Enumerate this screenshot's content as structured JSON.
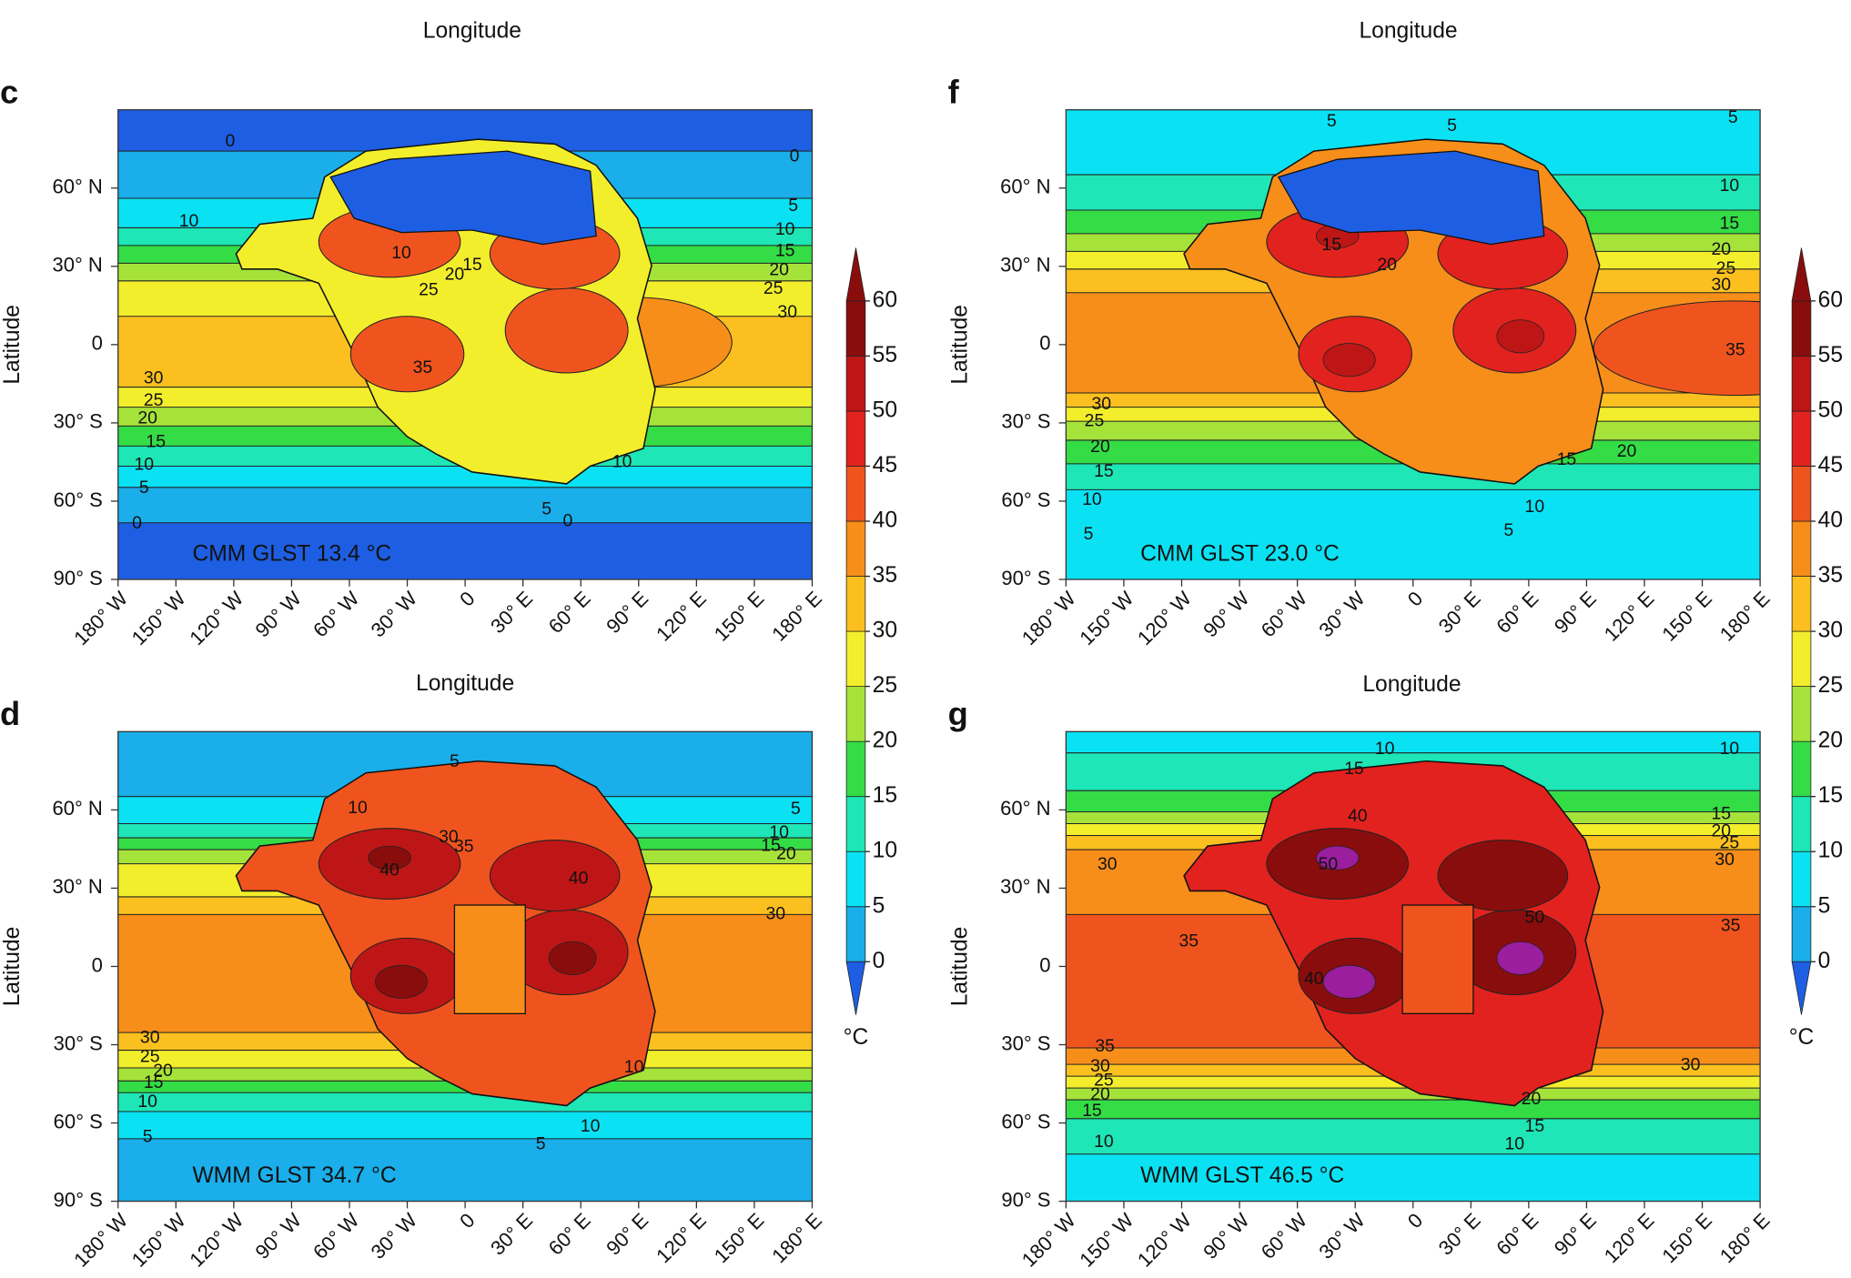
{
  "cut_labels": [
    "Longitude",
    "Longitude"
  ],
  "colorbar": {
    "ticks": [
      0,
      5,
      10,
      15,
      20,
      25,
      30,
      35,
      40,
      45,
      50,
      55,
      60
    ],
    "unit": "°C",
    "colors": [
      "#1aaeea",
      "#0ae2f4",
      "#1ee6b6",
      "#34dc46",
      "#a6e33a",
      "#f3ee2c",
      "#fbc01f",
      "#f78e1a",
      "#f0541e",
      "#e2221e",
      "#be1616",
      "#8a0d0d"
    ],
    "under_color": "#1e5ee2",
    "over_color": "#9a1e9e"
  },
  "chart_data": [
    {
      "type": "map",
      "panel": "c",
      "annotation": "CMM GLST 13.4 °C",
      "xlabel": "Longitude",
      "ylabel": "Latitude",
      "xlim": [
        -180,
        180
      ],
      "ylim": [
        -90,
        90
      ],
      "xticks": [
        {
          "value": -180,
          "label": "180° W"
        },
        {
          "value": -150,
          "label": "150° W"
        },
        {
          "value": -120,
          "label": "120° W"
        },
        {
          "value": -90,
          "label": "90° W"
        },
        {
          "value": -60,
          "label": "60° W"
        },
        {
          "value": -30,
          "label": "30° W"
        },
        0,
        {
          "value": 30,
          "label": "30° E"
        },
        {
          "value": 60,
          "label": "60° E"
        },
        {
          "value": 90,
          "label": "90° E"
        },
        {
          "value": 120,
          "label": "120° E"
        },
        {
          "value": 150,
          "label": "150° E"
        },
        {
          "value": 180,
          "label": "180° E"
        }
      ],
      "yticks": [
        {
          "value": 60,
          "label": "60° N"
        },
        {
          "value": 30,
          "label": "30° N"
        },
        0,
        {
          "value": -30,
          "label": "30° S"
        },
        {
          "value": -60,
          "label": "60° S"
        },
        {
          "value": -90,
          "label": "90° S"
        }
      ],
      "contour_labels": [
        0,
        0,
        10,
        5,
        10,
        15,
        20,
        25,
        30,
        10,
        15,
        20,
        25,
        35,
        30,
        25,
        20,
        15,
        10,
        5,
        0,
        5,
        0,
        10
      ]
    },
    {
      "type": "map",
      "panel": "f",
      "annotation": "CMM GLST 23.0 °C",
      "xlabel": "Longitude",
      "ylabel": "Latitude",
      "xlim": [
        -180,
        180
      ],
      "ylim": [
        -90,
        90
      ],
      "xticks": [
        {
          "value": -180,
          "label": "180° W"
        },
        {
          "value": -150,
          "label": "150° W"
        },
        {
          "value": -120,
          "label": "120° W"
        },
        {
          "value": -90,
          "label": "90° W"
        },
        {
          "value": -60,
          "label": "60° W"
        },
        {
          "value": -30,
          "label": "30° W"
        },
        0,
        {
          "value": 30,
          "label": "30° E"
        },
        {
          "value": 60,
          "label": "60° E"
        },
        {
          "value": 90,
          "label": "90° E"
        },
        {
          "value": 120,
          "label": "120° E"
        },
        {
          "value": 150,
          "label": "150° E"
        },
        {
          "value": 180,
          "label": "180° E"
        }
      ],
      "yticks": [
        {
          "value": 60,
          "label": "60° N"
        },
        {
          "value": 30,
          "label": "30° N"
        },
        0,
        {
          "value": -30,
          "label": "30° S"
        },
        {
          "value": -60,
          "label": "60° S"
        },
        {
          "value": -90,
          "label": "90° S"
        }
      ],
      "contour_labels": [
        5,
        5,
        5,
        10,
        15,
        20,
        25,
        30,
        35,
        30,
        25,
        20,
        15,
        10,
        5,
        20,
        15,
        10,
        5,
        15,
        20
      ]
    },
    {
      "type": "map",
      "panel": "d",
      "annotation": "WMM GLST 34.7 °C",
      "ylabel": "Latitude",
      "xlim": [
        -180,
        180
      ],
      "ylim": [
        -90,
        90
      ],
      "xticks": [
        {
          "value": -180,
          "label": "180° W"
        },
        {
          "value": -150,
          "label": "150° W"
        },
        {
          "value": -120,
          "label": "120° W"
        },
        {
          "value": -90,
          "label": "90° W"
        },
        {
          "value": -60,
          "label": "60° W"
        },
        {
          "value": -30,
          "label": "30° W"
        },
        0,
        {
          "value": 30,
          "label": "30° E"
        },
        {
          "value": 60,
          "label": "60° E"
        },
        {
          "value": 90,
          "label": "90° E"
        },
        {
          "value": 120,
          "label": "120° E"
        },
        {
          "value": 150,
          "label": "150° E"
        },
        {
          "value": 180,
          "label": "180° E"
        }
      ],
      "yticks": [
        {
          "value": 60,
          "label": "60° N"
        },
        {
          "value": 30,
          "label": "30° N"
        },
        0,
        {
          "value": -30,
          "label": "30° S"
        },
        {
          "value": -60,
          "label": "60° S"
        },
        {
          "value": -90,
          "label": "90° S"
        }
      ],
      "contour_labels": [
        5,
        10,
        5,
        10,
        15,
        20,
        30,
        30,
        25,
        20,
        15,
        10,
        5,
        5,
        10,
        30,
        35,
        40,
        40,
        10
      ]
    },
    {
      "type": "map",
      "panel": "g",
      "annotation": "WMM GLST 46.5 °C",
      "ylabel": "Latitude",
      "xlim": [
        -180,
        180
      ],
      "ylim": [
        -90,
        90
      ],
      "xticks": [
        {
          "value": -180,
          "label": "180° W"
        },
        {
          "value": -150,
          "label": "150° W"
        },
        {
          "value": -120,
          "label": "120° W"
        },
        {
          "value": -90,
          "label": "90° W"
        },
        {
          "value": -60,
          "label": "60° W"
        },
        {
          "value": -30,
          "label": "30° W"
        },
        0,
        {
          "value": 30,
          "label": "30° E"
        },
        {
          "value": 60,
          "label": "60° E"
        },
        {
          "value": 90,
          "label": "90° E"
        },
        {
          "value": 120,
          "label": "120° E"
        },
        {
          "value": 150,
          "label": "150° E"
        },
        {
          "value": 180,
          "label": "180° E"
        }
      ],
      "yticks": [
        {
          "value": 60,
          "label": "60° N"
        },
        {
          "value": 30,
          "label": "30° N"
        },
        0,
        {
          "value": -30,
          "label": "30° S"
        },
        {
          "value": -60,
          "label": "60° S"
        },
        {
          "value": -90,
          "label": "90° S"
        }
      ],
      "contour_labels": [
        10,
        10,
        15,
        15,
        20,
        25,
        30,
        30,
        35,
        35,
        35,
        30,
        25,
        20,
        15,
        10,
        10,
        15,
        20,
        30,
        40,
        50,
        50,
        40
      ]
    }
  ]
}
